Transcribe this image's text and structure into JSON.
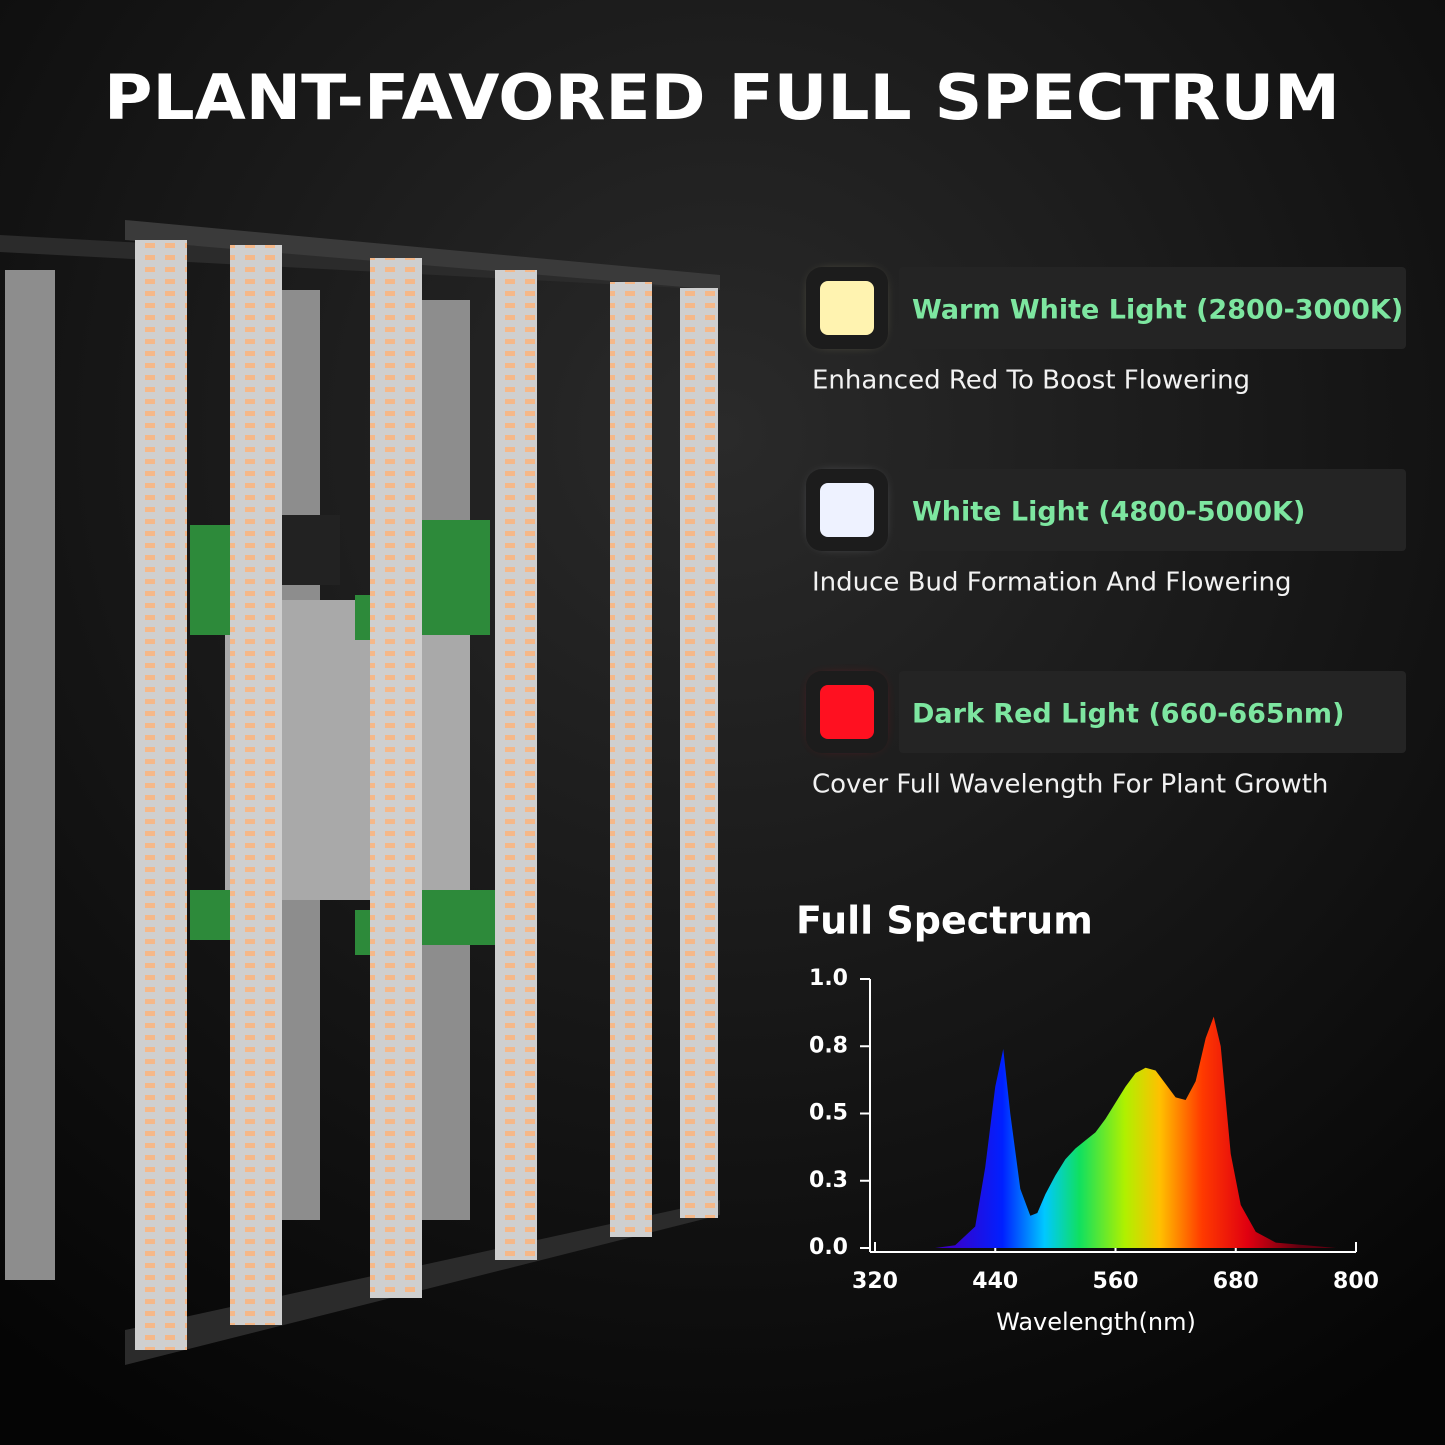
{
  "header": {
    "title": "PLANT-FAVORED FULL SPECTRUM"
  },
  "features": [
    {
      "label": "Warm White Light (2800-3000K)",
      "description": "Enhanced Red To Boost Flowering",
      "icon_color": "#fff3b0"
    },
    {
      "label": "White Light (4800-5000K)",
      "description": "Induce Bud Formation And Flowering",
      "icon_color": "#eef2ff"
    },
    {
      "label": "Dark Red Light (660-665nm)",
      "description": "Cover Full Wavelength For Plant Growth",
      "icon_color": "#ff1020"
    }
  ],
  "chart_data": {
    "type": "area",
    "title": "Full Spectrum",
    "x_label": "Wavelength(nm)",
    "x": [
      380,
      400,
      420,
      430,
      440,
      448,
      455,
      465,
      475,
      482,
      490,
      500,
      510,
      520,
      530,
      540,
      550,
      560,
      570,
      580,
      590,
      600,
      610,
      620,
      630,
      640,
      650,
      658,
      665,
      675,
      685,
      700,
      720,
      750,
      780
    ],
    "values": [
      0,
      0.01,
      0.08,
      0.3,
      0.6,
      0.74,
      0.5,
      0.22,
      0.12,
      0.13,
      0.2,
      0.27,
      0.33,
      0.37,
      0.4,
      0.43,
      0.48,
      0.54,
      0.6,
      0.65,
      0.67,
      0.66,
      0.61,
      0.56,
      0.55,
      0.62,
      0.78,
      0.86,
      0.75,
      0.35,
      0.16,
      0.06,
      0.02,
      0.01,
      0
    ],
    "xlim": [
      320,
      800
    ],
    "xticks": [
      320,
      440,
      560,
      680,
      800
    ],
    "ylim": [
      0,
      1
    ],
    "yticks": [
      {
        "value": 0,
        "label": "0.0"
      },
      {
        "value": 0.25,
        "label": "0.3"
      },
      {
        "value": 0.5,
        "label": "0.5"
      },
      {
        "value": 0.75,
        "label": "0.8"
      },
      {
        "value": 1,
        "label": "1.0"
      }
    ]
  }
}
